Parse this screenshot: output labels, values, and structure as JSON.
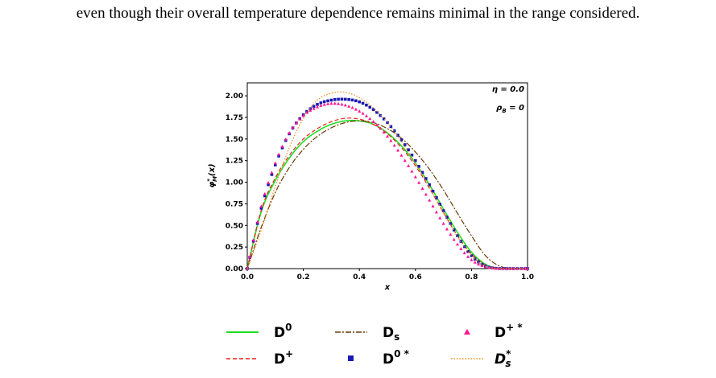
{
  "page": {
    "text_line": "even though their overall temperature dependence remains minimal in the range considered."
  },
  "chart_data": {
    "type": "line",
    "title": "",
    "xlabel": "x",
    "ylabel": "φ*_M(x)",
    "xlim": [
      0.0,
      1.0
    ],
    "ylim": [
      0.0,
      2.15
    ],
    "xticks": [
      "0.0",
      "0.2",
      "0.4",
      "0.6",
      "0.8",
      "1.0"
    ],
    "yticks": [
      "0.00",
      "0.25",
      "0.50",
      "0.75",
      "1.00",
      "1.25",
      "1.50",
      "1.75",
      "2.00"
    ],
    "annotations": [
      "η = 0.0",
      "ρ_B = 0"
    ],
    "legend_placement": "below",
    "grid": false,
    "x": [
      0.0,
      0.05,
      0.1,
      0.15,
      0.2,
      0.25,
      0.3,
      0.35,
      0.4,
      0.45,
      0.5,
      0.55,
      0.6,
      0.65,
      0.7,
      0.75,
      0.8,
      0.85,
      0.9,
      0.95,
      1.0
    ],
    "series": [
      {
        "name": "D0",
        "style": "solid",
        "marker": "none",
        "color": "#22dd22",
        "values": [
          0.0,
          0.66,
          1.02,
          1.28,
          1.47,
          1.59,
          1.67,
          1.71,
          1.71,
          1.67,
          1.57,
          1.42,
          1.22,
          0.97,
          0.69,
          0.42,
          0.19,
          0.05,
          0.0,
          0.0,
          0.0
        ]
      },
      {
        "name": "D+",
        "style": "dashed",
        "marker": "none",
        "color": "#e8231c",
        "values": [
          0.0,
          0.68,
          1.05,
          1.31,
          1.5,
          1.62,
          1.7,
          1.74,
          1.73,
          1.67,
          1.56,
          1.4,
          1.19,
          0.93,
          0.65,
          0.38,
          0.17,
          0.04,
          0.0,
          0.0,
          0.0
        ]
      },
      {
        "name": "Ds",
        "style": "dashdot",
        "marker": "none",
        "color": "#6b3a06",
        "values": [
          0.0,
          0.48,
          0.88,
          1.17,
          1.38,
          1.53,
          1.63,
          1.69,
          1.71,
          1.69,
          1.62,
          1.51,
          1.35,
          1.15,
          0.91,
          0.64,
          0.38,
          0.15,
          0.03,
          0.0,
          0.0
        ]
      },
      {
        "name": "D0*",
        "style": "none",
        "marker": "square",
        "color": "#1a1ab4",
        "values": [
          0.0,
          0.7,
          1.2,
          1.56,
          1.78,
          1.9,
          1.95,
          1.96,
          1.93,
          1.84,
          1.69,
          1.49,
          1.25,
          0.97,
          0.67,
          0.38,
          0.15,
          0.03,
          0.0,
          0.0,
          0.0
        ]
      },
      {
        "name": "D+*",
        "style": "none",
        "marker": "triangle",
        "color": "#ff1493",
        "values": [
          0.0,
          0.72,
          1.22,
          1.57,
          1.77,
          1.87,
          1.91,
          1.89,
          1.82,
          1.7,
          1.53,
          1.31,
          1.06,
          0.79,
          0.52,
          0.28,
          0.1,
          0.02,
          0.0,
          0.0,
          0.0
        ]
      },
      {
        "name": "Ds*",
        "style": "dotted",
        "marker": "none",
        "color": "#f08a1c",
        "values": [
          0.0,
          0.45,
          0.95,
          1.4,
          1.74,
          1.95,
          2.03,
          2.04,
          1.98,
          1.86,
          1.69,
          1.47,
          1.22,
          0.94,
          0.65,
          0.37,
          0.15,
          0.03,
          0.0,
          0.0,
          0.0
        ]
      }
    ]
  },
  "legend": {
    "items": [
      {
        "main": "D",
        "sup": "0",
        "sub": "",
        "italic": false
      },
      {
        "main": "D",
        "sup": "+",
        "sub": "",
        "italic": false
      },
      {
        "main": "D",
        "sup": "",
        "sub": "s",
        "italic": false
      },
      {
        "main": "D",
        "sup": "0 *",
        "sub": "",
        "italic": false
      },
      {
        "main": "D",
        "sup": "+ *",
        "sub": "",
        "italic": false
      },
      {
        "main": "D",
        "sup": "*",
        "sub": "s",
        "italic": true
      }
    ]
  }
}
